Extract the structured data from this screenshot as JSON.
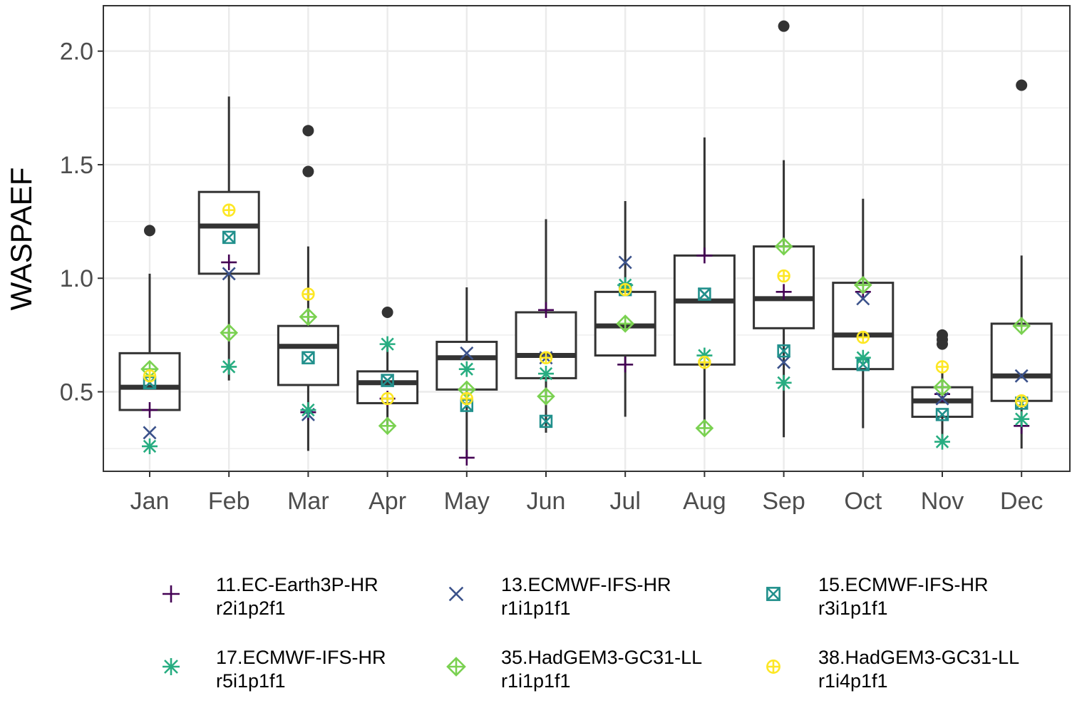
{
  "chart_data": {
    "type": "boxplot",
    "ylabel": "WASPAEF",
    "xlabel": "",
    "ylim": [
      0.15,
      2.2
    ],
    "yticks": [
      0.5,
      1.0,
      1.5,
      2.0
    ],
    "ytick_labels": [
      "0.5",
      "1.0",
      "1.5",
      "2.0"
    ],
    "grid": true,
    "legend_position": "bottom",
    "categories": [
      "Jan",
      "Feb",
      "Mar",
      "Apr",
      "May",
      "Jun",
      "Jul",
      "Aug",
      "Sep",
      "Oct",
      "Nov",
      "Dec"
    ],
    "boxes": [
      {
        "month": "Jan",
        "whisker_low": 0.42,
        "q1": 0.42,
        "median": 0.52,
        "q3": 0.67,
        "whisker_high": 1.02,
        "outliers": [
          1.21
        ]
      },
      {
        "month": "Feb",
        "whisker_low": 0.55,
        "q1": 1.02,
        "median": 1.23,
        "q3": 1.38,
        "whisker_high": 1.8,
        "outliers": []
      },
      {
        "month": "Mar",
        "whisker_low": 0.24,
        "q1": 0.53,
        "median": 0.7,
        "q3": 0.79,
        "whisker_high": 1.14,
        "outliers": [
          1.47,
          1.65
        ]
      },
      {
        "month": "Apr",
        "whisker_low": 0.35,
        "q1": 0.45,
        "median": 0.54,
        "q3": 0.59,
        "whisker_high": 0.71,
        "outliers": [
          0.85
        ]
      },
      {
        "month": "May",
        "whisker_low": 0.21,
        "q1": 0.51,
        "median": 0.65,
        "q3": 0.72,
        "whisker_high": 0.96,
        "outliers": []
      },
      {
        "month": "Jun",
        "whisker_low": 0.32,
        "q1": 0.56,
        "median": 0.66,
        "q3": 0.85,
        "whisker_high": 1.26,
        "outliers": []
      },
      {
        "month": "Jul",
        "whisker_low": 0.39,
        "q1": 0.66,
        "median": 0.79,
        "q3": 0.94,
        "whisker_high": 1.34,
        "outliers": []
      },
      {
        "month": "Aug",
        "whisker_low": 0.34,
        "q1": 0.62,
        "median": 0.9,
        "q3": 1.1,
        "whisker_high": 1.62,
        "outliers": []
      },
      {
        "month": "Sep",
        "whisker_low": 0.3,
        "q1": 0.78,
        "median": 0.91,
        "q3": 1.14,
        "whisker_high": 1.52,
        "outliers": [
          2.11
        ]
      },
      {
        "month": "Oct",
        "whisker_low": 0.34,
        "q1": 0.6,
        "median": 0.75,
        "q3": 0.98,
        "whisker_high": 1.35,
        "outliers": []
      },
      {
        "month": "Nov",
        "whisker_low": 0.29,
        "q1": 0.39,
        "median": 0.46,
        "q3": 0.52,
        "whisker_high": 0.59,
        "outliers": [
          0.71,
          0.73,
          0.75
        ]
      },
      {
        "month": "Dec",
        "whisker_low": 0.25,
        "q1": 0.46,
        "median": 0.57,
        "q3": 0.8,
        "whisker_high": 1.1,
        "outliers": [
          1.85
        ]
      }
    ],
    "series": [
      {
        "name": "11.EC-Earth3P-HR",
        "variant": "r2i1p2f1",
        "shape": "plus",
        "color": "#440154",
        "values": [
          0.42,
          1.07,
          0.41,
          0.47,
          0.21,
          0.86,
          0.62,
          1.1,
          0.94,
          0.94,
          0.49,
          0.35
        ]
      },
      {
        "name": "13.ECMWF-IFS-HR",
        "variant": "r1i1p1f1",
        "shape": "cross",
        "color": "#3b528b",
        "values": [
          0.32,
          1.02,
          0.4,
          0.55,
          0.67,
          0.65,
          1.07,
          0.93,
          0.63,
          0.91,
          0.47,
          0.57
        ]
      },
      {
        "name": "15.ECMWF-IFS-HR",
        "variant": "r3i1p1f1",
        "shape": "squarecross",
        "color": "#21908c",
        "values": [
          0.54,
          1.18,
          0.65,
          0.55,
          0.44,
          0.37,
          0.95,
          0.93,
          0.68,
          0.62,
          0.4,
          0.45
        ]
      },
      {
        "name": "17.ECMWF-IFS-HR",
        "variant": "r5i1p1f1",
        "shape": "asterisk",
        "color": "#27ad81",
        "values": [
          0.26,
          0.61,
          0.42,
          0.71,
          0.6,
          0.58,
          0.97,
          0.66,
          0.54,
          0.65,
          0.28,
          0.38
        ]
      },
      {
        "name": "35.HadGEM3-GC31-LL",
        "variant": "r1i1p1f1",
        "shape": "diamondplus",
        "color": "#7ad151",
        "values": [
          0.6,
          0.76,
          0.83,
          0.35,
          0.51,
          0.48,
          0.8,
          0.34,
          1.14,
          0.97,
          0.52,
          0.79
        ]
      },
      {
        "name": "38.HadGEM3-GC31-LL",
        "variant": "r1i4p1f1",
        "shape": "circleplus",
        "color": "#fde725",
        "values": [
          0.57,
          1.3,
          0.93,
          0.47,
          0.47,
          0.65,
          0.95,
          0.63,
          1.01,
          0.74,
          0.61,
          0.46
        ]
      }
    ]
  }
}
